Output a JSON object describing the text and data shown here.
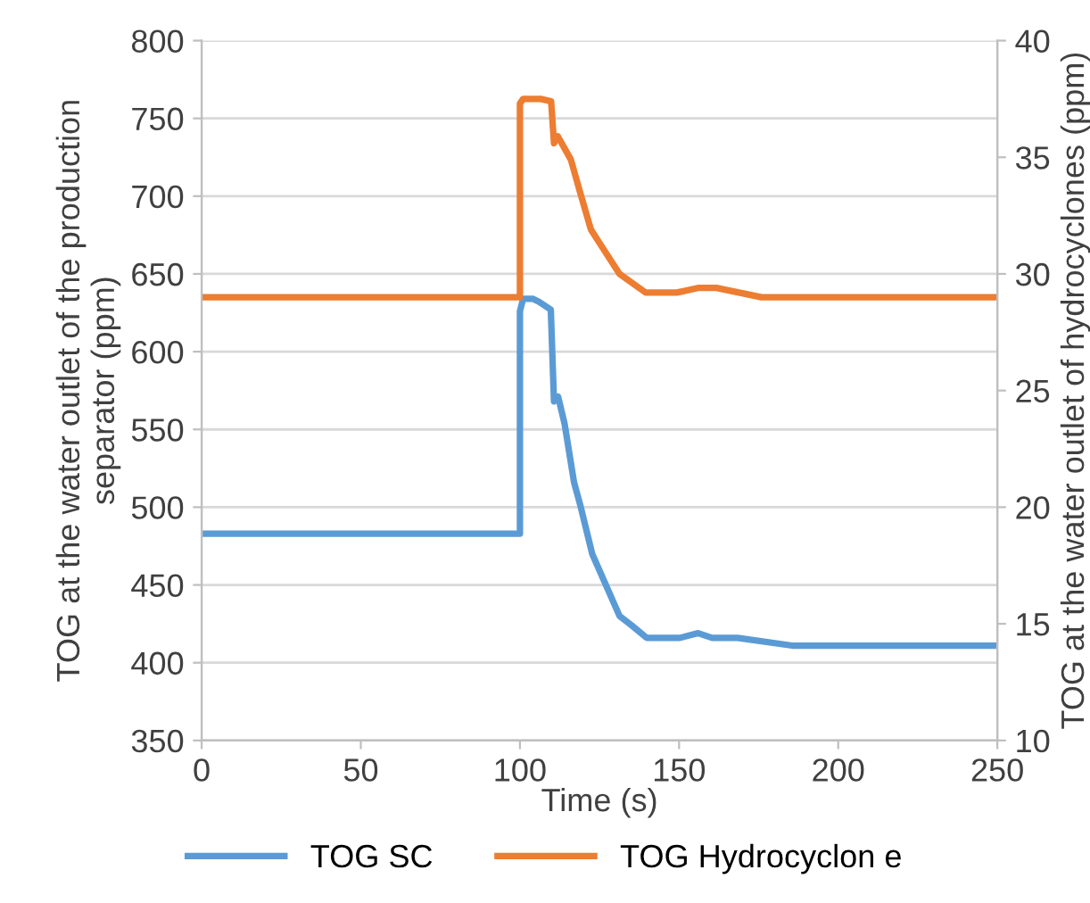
{
  "chart_data": {
    "type": "line",
    "xlabel": "Time (s)",
    "ylabel": "TOG at the water outlet of the production\nseparator (ppm)",
    "y2label": "TOG at the water outlet of hydrocyclones (ppm)",
    "xlim": [
      0,
      250
    ],
    "xticks": [
      0,
      50,
      100,
      150,
      200,
      250
    ],
    "ylim": [
      350,
      800
    ],
    "yticks": [
      350,
      400,
      450,
      500,
      550,
      600,
      650,
      700,
      750,
      800
    ],
    "y2lim": [
      10,
      40
    ],
    "y2ticks": [
      10,
      15,
      20,
      25,
      30,
      35,
      40
    ],
    "grid": "y",
    "legend": "bottom",
    "marker": "none",
    "line_style": "solid",
    "series": [
      {
        "name": "TOG SC",
        "color": "#5b9bd5",
        "x": [
          0,
          100,
          100,
          101,
          104,
          106,
          109.7,
          110.7,
          112,
          114,
          117,
          119,
          122.7,
          131.3,
          135.1,
          139.8,
          150.3,
          156,
          160.4,
          168.4,
          185.5,
          250
        ],
        "values": [
          483,
          483,
          626,
          634,
          634,
          632,
          627,
          568,
          571,
          554,
          516,
          501,
          470,
          430,
          424,
          416,
          416,
          419,
          416,
          416,
          411,
          411
        ]
      },
      {
        "name": "TOG Hydrocyclon e",
        "color": "#ed7d31",
        "axis": "y2",
        "x": [
          0,
          100,
          100,
          101,
          106.5,
          109.8,
          110.7,
          111.9,
          116,
          118.9,
          122.3,
          125.6,
          131.3,
          139.5,
          149.3,
          155.9,
          161.7,
          175.9,
          250
        ],
        "values": [
          29,
          29,
          37.3,
          37.5,
          37.5,
          37.4,
          35.6,
          35.9,
          34.9,
          33.5,
          31.9,
          31.2,
          30,
          29.2,
          29.2,
          29.4,
          29.4,
          29,
          29
        ]
      }
    ]
  }
}
